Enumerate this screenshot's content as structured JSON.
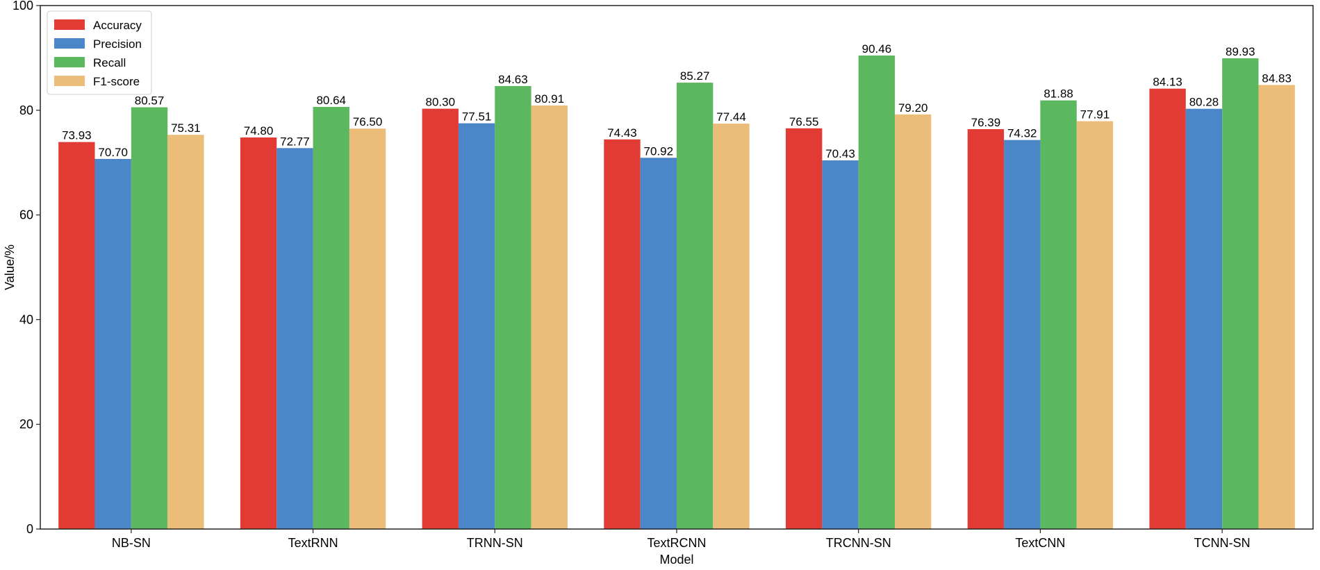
{
  "chart_data": {
    "type": "bar",
    "title": "",
    "xlabel": "Model",
    "ylabel": "Value/%",
    "ylim": [
      0,
      100
    ],
    "yticks": [
      0,
      20,
      40,
      60,
      80,
      100
    ],
    "grid": false,
    "legend_position": "top-left",
    "categories": [
      "NB-SN",
      "TextRNN",
      "TRNN-SN",
      "TextRCNN",
      "TRCNN-SN",
      "TextCNN",
      "TCNN-SN"
    ],
    "series": [
      {
        "name": "Accuracy",
        "color": "#e23b33",
        "values": [
          73.93,
          74.8,
          80.3,
          74.43,
          76.55,
          76.39,
          84.13
        ]
      },
      {
        "name": "Precision",
        "color": "#4a86c8",
        "values": [
          70.7,
          72.77,
          77.51,
          70.92,
          70.43,
          74.32,
          80.28
        ]
      },
      {
        "name": "Recall",
        "color": "#5cb85f",
        "values": [
          80.57,
          80.64,
          84.63,
          85.27,
          90.46,
          81.88,
          89.93
        ]
      },
      {
        "name": "F1-score",
        "color": "#ecbc79",
        "values": [
          75.31,
          76.5,
          80.91,
          77.44,
          79.2,
          77.91,
          84.83
        ]
      }
    ]
  }
}
